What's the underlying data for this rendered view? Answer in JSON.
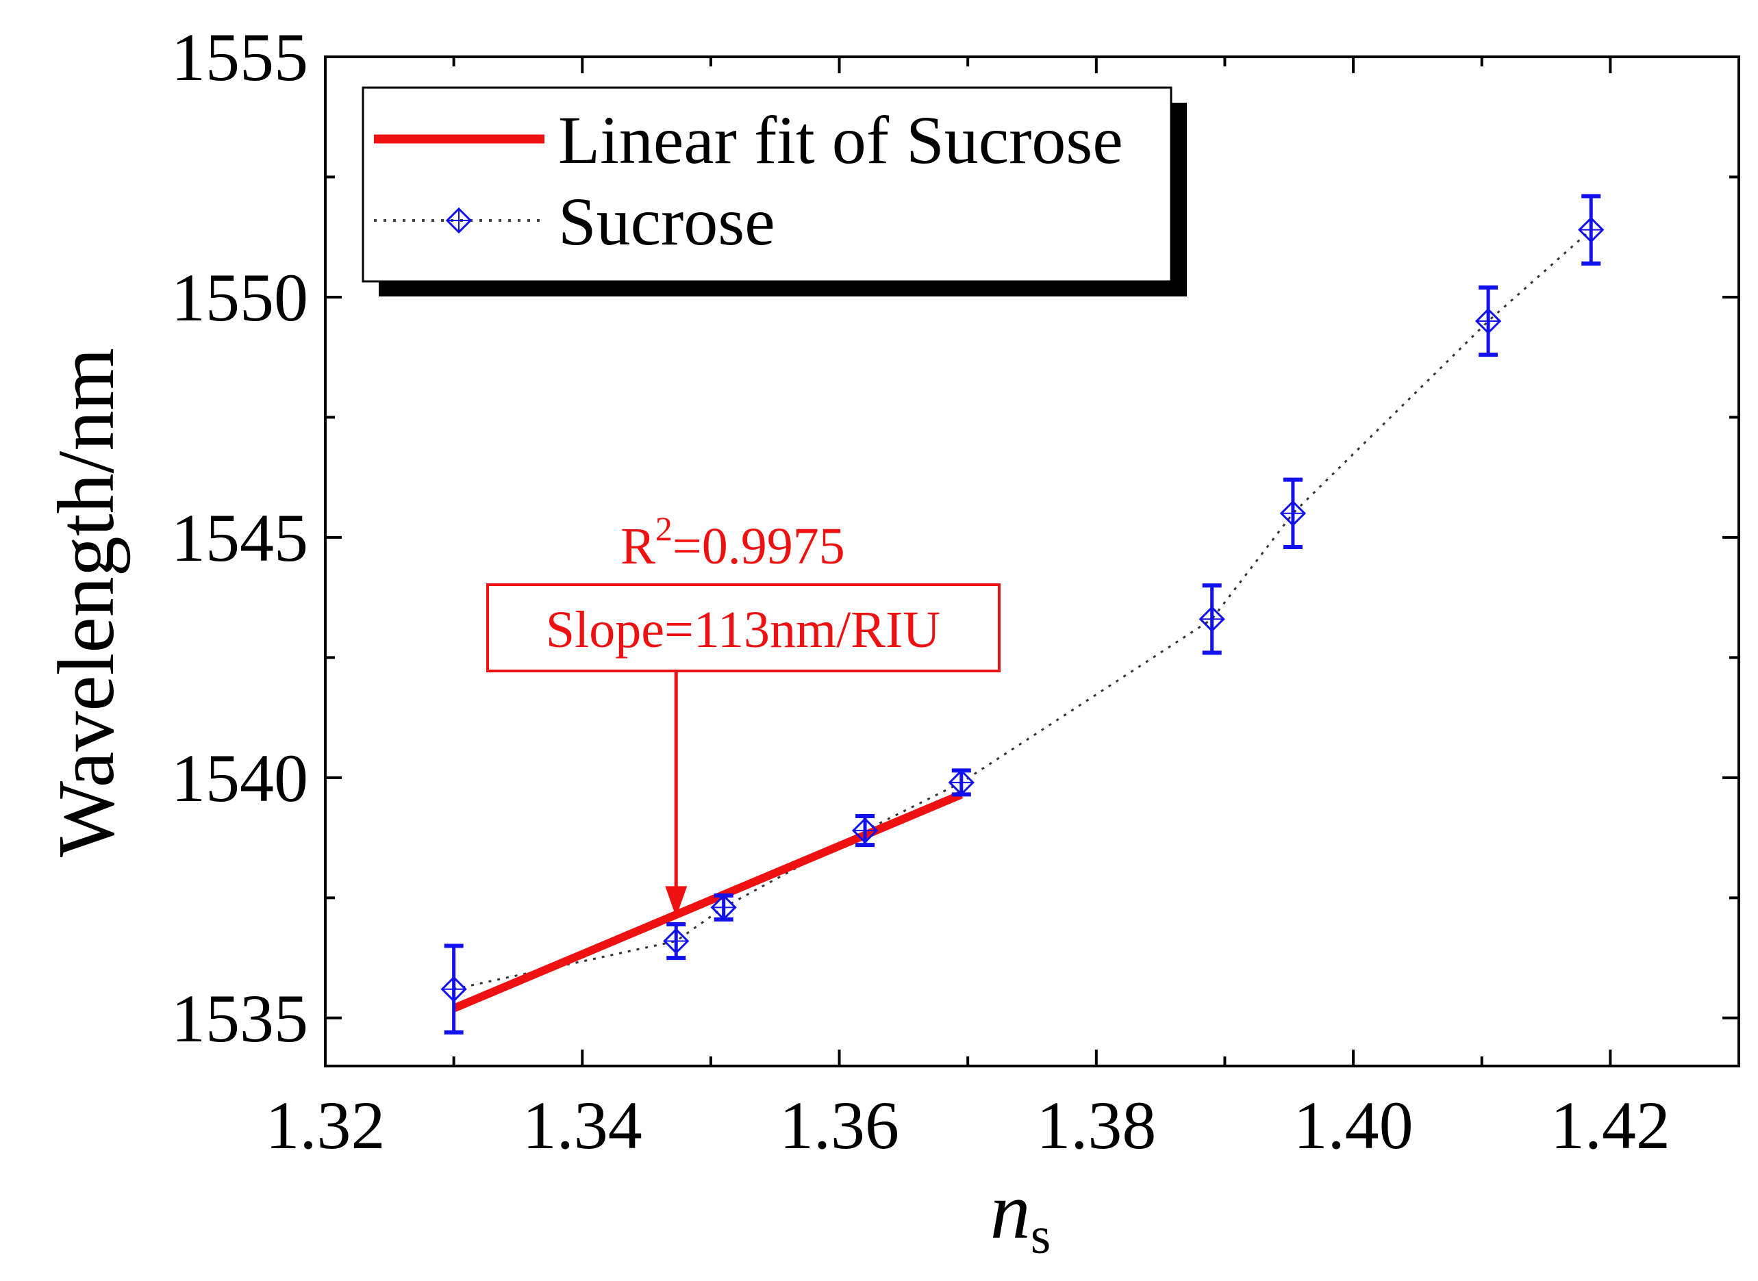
{
  "chart_data": {
    "type": "scatter",
    "title": "",
    "xlabel": "n",
    "xlabel_sub": "s",
    "ylabel": "Wavelength/nm",
    "xlim": [
      1.32,
      1.43
    ],
    "ylim": [
      1534,
      1555
    ],
    "xticks": [
      1.32,
      1.34,
      1.36,
      1.38,
      1.4,
      1.42
    ],
    "xtick_labels": [
      "1.32",
      "1.34",
      "1.36",
      "1.38",
      "1.40",
      "1.42"
    ],
    "yticks": [
      1535,
      1540,
      1545,
      1550,
      1555
    ],
    "ytick_labels": [
      "1535",
      "1540",
      "1545",
      "1550",
      "1555"
    ],
    "grid": false,
    "series": [
      {
        "name": "Sucrose",
        "style": "dotted line with open diamond markers and error bars",
        "x": [
          1.33,
          1.3473,
          1.351,
          1.362,
          1.3695,
          1.389,
          1.3953,
          1.4105,
          1.4185
        ],
        "y": [
          1535.6,
          1536.6,
          1537.3,
          1538.9,
          1539.9,
          1543.3,
          1545.5,
          1549.5,
          1551.4
        ],
        "yerr": [
          0.9,
          0.35,
          0.25,
          0.3,
          0.25,
          0.7,
          0.7,
          0.7,
          0.7
        ],
        "color": "#1111ee"
      },
      {
        "name": "Linear fit of Sucrose",
        "style": "solid line",
        "x": [
          1.33,
          1.3695
        ],
        "y": [
          1535.2,
          1539.65
        ],
        "color": "#ee1111"
      }
    ],
    "legend": {
      "position": "top-left",
      "entries": [
        "Linear fit of Sucrose",
        "Sucrose"
      ]
    },
    "annotations": {
      "r2_label": "R",
      "r2_sup": "2",
      "r2_value": "=0.9975",
      "slope": "Slope=113nm/RIU",
      "arrow_target": {
        "x": 1.3473,
        "y": 1537.1
      },
      "color": "#ee1111"
    }
  }
}
